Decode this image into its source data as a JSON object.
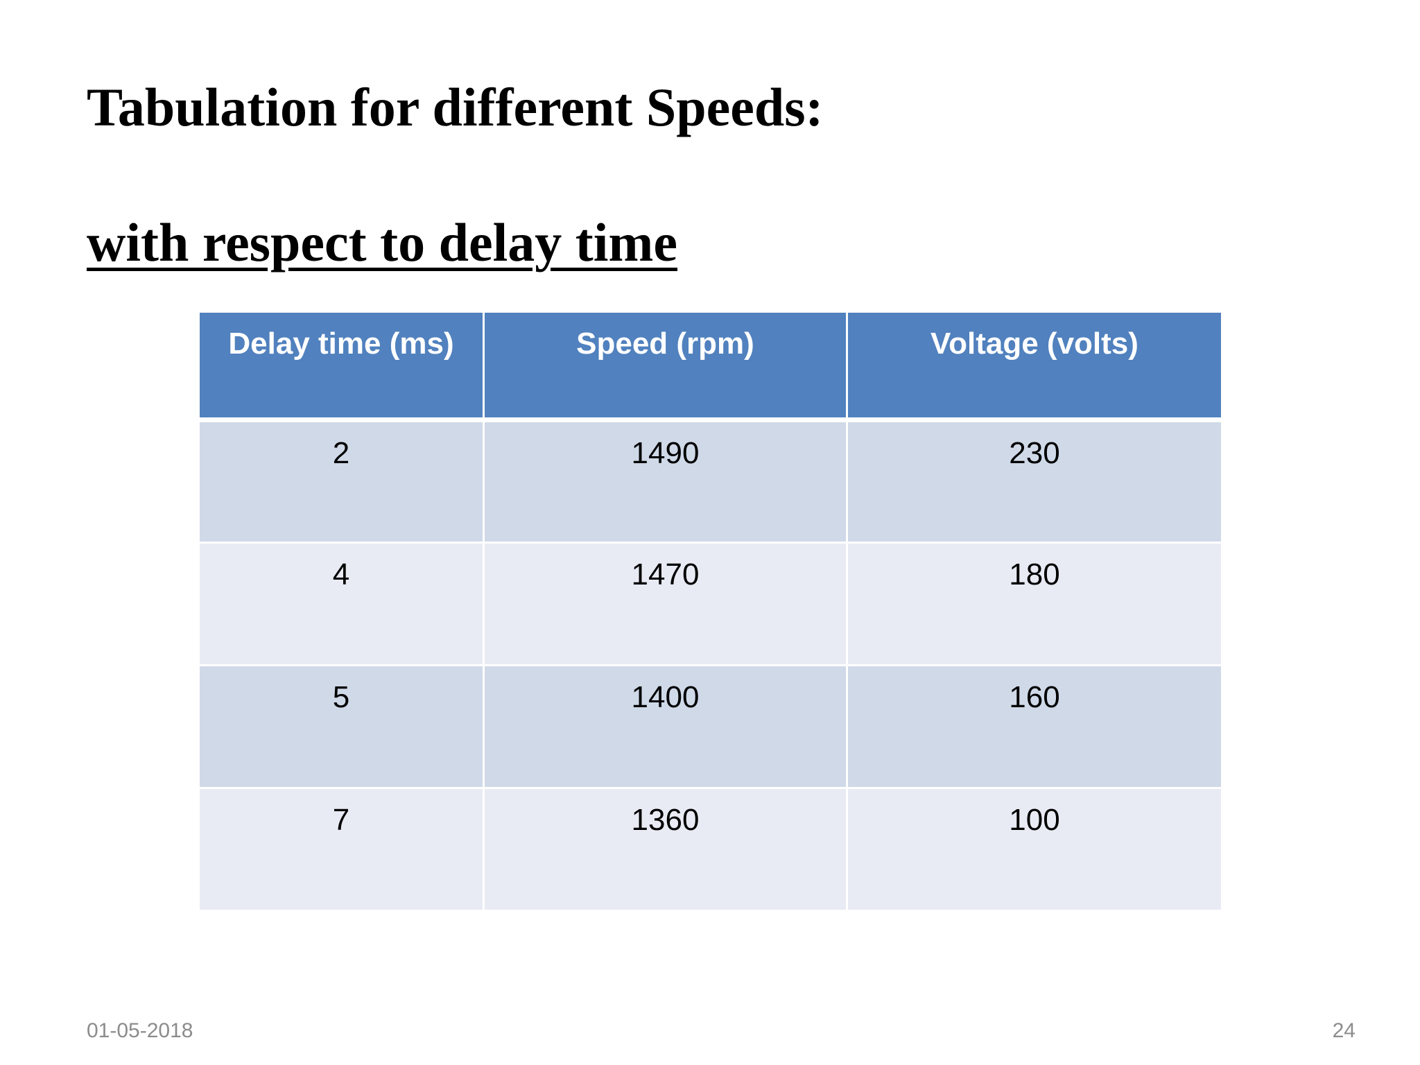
{
  "slide": {
    "title": "Tabulation for different Speeds:",
    "subtitle": "with respect to delay time",
    "footer_date": "01-05-2018",
    "page_number": "24"
  },
  "table": {
    "headers": [
      "Delay time (ms)",
      "Speed (rpm)",
      "Voltage (volts)"
    ],
    "rows": [
      [
        "2",
        "1490",
        "230"
      ],
      [
        "4",
        "1470",
        "180"
      ],
      [
        "5",
        "1400",
        "160"
      ],
      [
        "7",
        "1360",
        "100"
      ]
    ]
  },
  "colors": {
    "header_bg": "#5181be",
    "row_odd_bg": "#cfd9e8",
    "row_even_bg": "#e8ebf4",
    "footer_text": "#8c8c8c"
  }
}
